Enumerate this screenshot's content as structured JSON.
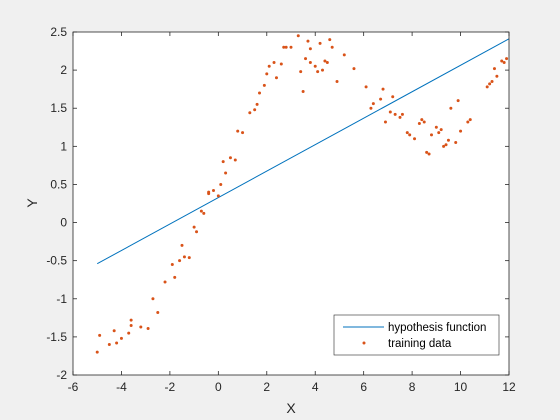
{
  "chart_data": {
    "type": "scatter",
    "xlabel": "X",
    "ylabel": "Y",
    "xlim": [
      -6,
      12
    ],
    "ylim": [
      -2,
      2.5
    ],
    "xticks": [
      "-6",
      "-4",
      "-2",
      "0",
      "2",
      "4",
      "6",
      "8",
      "10",
      "12"
    ],
    "yticks": [
      "-2",
      "-1.5",
      "-1",
      "-0.5",
      "0",
      "0.5",
      "1",
      "1.5",
      "2",
      "2.5"
    ],
    "grid": false,
    "legend_position": "bottom-right",
    "colors": {
      "line": "#0072BD",
      "points": "#D95319",
      "axes": "#262626",
      "background": "#ffffff"
    },
    "series": [
      {
        "name": "hypothesis function",
        "kind": "line",
        "x": [
          -5,
          12
        ],
        "y": [
          -0.54,
          2.41
        ]
      },
      {
        "name": "training data",
        "kind": "scatter",
        "x": [
          -5.0,
          -4.9,
          -4.5,
          -4.3,
          -4.2,
          -4.0,
          -3.7,
          -3.6,
          -3.6,
          -3.2,
          -2.9,
          -2.7,
          -2.5,
          -2.2,
          -1.9,
          -1.8,
          -1.6,
          -1.5,
          -1.4,
          -1.2,
          -1.0,
          -0.9,
          -0.7,
          -0.6,
          -0.4,
          -0.4,
          -0.2,
          0.0,
          0.1,
          0.2,
          0.3,
          0.5,
          0.7,
          0.8,
          1.0,
          1.3,
          1.5,
          1.6,
          1.7,
          1.9,
          2.0,
          2.1,
          2.3,
          2.4,
          2.6,
          2.7,
          2.8,
          3.0,
          3.3,
          3.4,
          3.5,
          3.6,
          3.7,
          3.8,
          3.8,
          4.0,
          4.1,
          4.2,
          4.3,
          4.4,
          4.5,
          4.6,
          4.7,
          4.9,
          5.2,
          5.6,
          6.1,
          6.3,
          6.4,
          6.7,
          6.8,
          6.9,
          7.1,
          7.2,
          7.3,
          7.5,
          7.6,
          7.8,
          7.9,
          8.1,
          8.3,
          8.4,
          8.5,
          8.6,
          8.7,
          8.8,
          9.0,
          9.1,
          9.2,
          9.3,
          9.4,
          9.5,
          9.6,
          9.8,
          9.9,
          10.0,
          10.3,
          10.4,
          11.1,
          11.2,
          11.3,
          11.4,
          11.5,
          11.7,
          11.8,
          11.9
        ],
        "y": [
          -1.7,
          -1.48,
          -1.6,
          -1.42,
          -1.58,
          -1.52,
          -1.45,
          -1.35,
          -1.28,
          -1.37,
          -1.39,
          -1.0,
          -1.18,
          -0.78,
          -0.55,
          -0.72,
          -0.5,
          -0.3,
          -0.45,
          -0.46,
          -0.06,
          -0.12,
          0.15,
          0.12,
          0.4,
          0.38,
          0.42,
          0.35,
          0.5,
          0.8,
          0.65,
          0.85,
          0.82,
          1.2,
          1.18,
          1.44,
          1.48,
          1.55,
          1.7,
          1.8,
          1.95,
          2.05,
          2.1,
          1.9,
          2.08,
          2.3,
          2.3,
          2.3,
          2.45,
          1.98,
          1.72,
          2.15,
          2.38,
          2.28,
          2.1,
          2.05,
          1.98,
          2.35,
          2.0,
          2.12,
          2.1,
          2.4,
          2.3,
          1.85,
          2.2,
          2.02,
          1.78,
          1.5,
          1.56,
          1.62,
          1.75,
          1.32,
          1.45,
          1.65,
          1.42,
          1.38,
          1.42,
          1.18,
          1.15,
          1.1,
          1.3,
          1.35,
          1.32,
          0.92,
          0.9,
          1.15,
          1.25,
          1.18,
          1.22,
          1.0,
          1.02,
          1.08,
          1.5,
          1.05,
          1.6,
          1.2,
          1.32,
          1.35,
          1.78,
          1.82,
          1.85,
          2.02,
          1.92,
          2.12,
          2.1,
          2.15
        ]
      }
    ]
  }
}
